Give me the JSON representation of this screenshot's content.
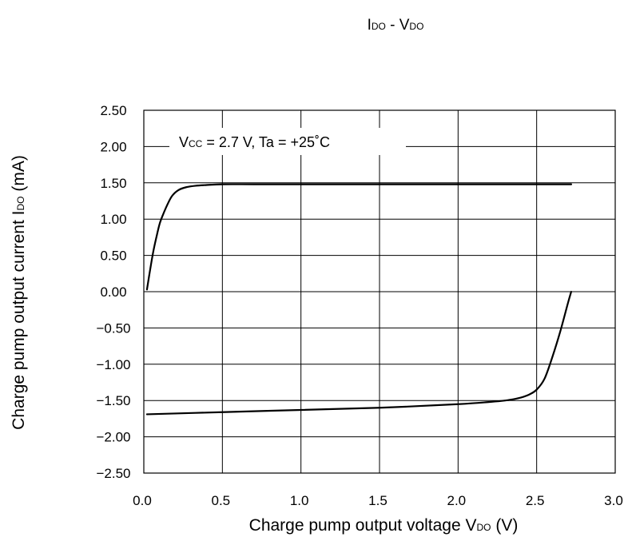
{
  "chart_data": {
    "type": "line",
    "title": {
      "main_1": "I",
      "sub_1": "DO",
      "main_2": " - V",
      "sub_2": "DO"
    },
    "xlabel": {
      "main": "Charge pump output voltage V",
      "sub": "DO",
      "tail": " (V)"
    },
    "ylabel": {
      "main": "Charge pump output current I",
      "sub": "DO",
      "tail": " (mA)"
    },
    "xlim": [
      0,
      3.0
    ],
    "ylim": [
      -2.5,
      2.5
    ],
    "x_ticks": [
      0,
      0.5,
      1.0,
      1.5,
      2.0,
      2.5,
      3.0
    ],
    "x_tick_labels": [
      "0.0",
      "0.5",
      "1.0",
      "1.5",
      "2.0",
      "2.5",
      "3.0"
    ],
    "y_ticks": [
      2.5,
      2.0,
      1.5,
      1.0,
      0.5,
      0.0,
      -0.5,
      -1.0,
      -1.5,
      -2.0,
      -2.5
    ],
    "y_tick_labels": [
      "2.50",
      "2.00",
      "1.50",
      "1.00",
      "0.50",
      "0.00",
      "−0.50",
      "−1.00",
      "−1.50",
      "−2.00",
      "−2.50"
    ],
    "grid": true,
    "annotation": {
      "part_1": "V",
      "sub_1": "CC",
      "part_2": " = 2.7 V, Ta = +25˚C"
    },
    "series": [
      {
        "x": [
          0.02,
          0.04,
          0.06,
          0.08,
          0.1,
          0.12,
          0.15,
          0.18,
          0.22,
          0.27,
          0.33,
          0.4,
          0.5,
          0.7,
          1.0,
          1.5,
          2.0,
          2.5,
          2.72
        ],
        "y": [
          0.03,
          0.3,
          0.55,
          0.75,
          0.93,
          1.05,
          1.2,
          1.32,
          1.4,
          1.44,
          1.46,
          1.47,
          1.48,
          1.48,
          1.48,
          1.48,
          1.48,
          1.48,
          1.48
        ]
      },
      {
        "x": [
          0.02,
          0.5,
          1.0,
          1.5,
          2.0,
          2.2,
          2.3,
          2.38,
          2.45,
          2.5,
          2.55,
          2.6,
          2.65,
          2.7,
          2.72
        ],
        "y": [
          -1.69,
          -1.66,
          -1.63,
          -1.6,
          -1.55,
          -1.52,
          -1.5,
          -1.47,
          -1.42,
          -1.35,
          -1.2,
          -0.9,
          -0.55,
          -0.15,
          0.0
        ]
      }
    ]
  }
}
